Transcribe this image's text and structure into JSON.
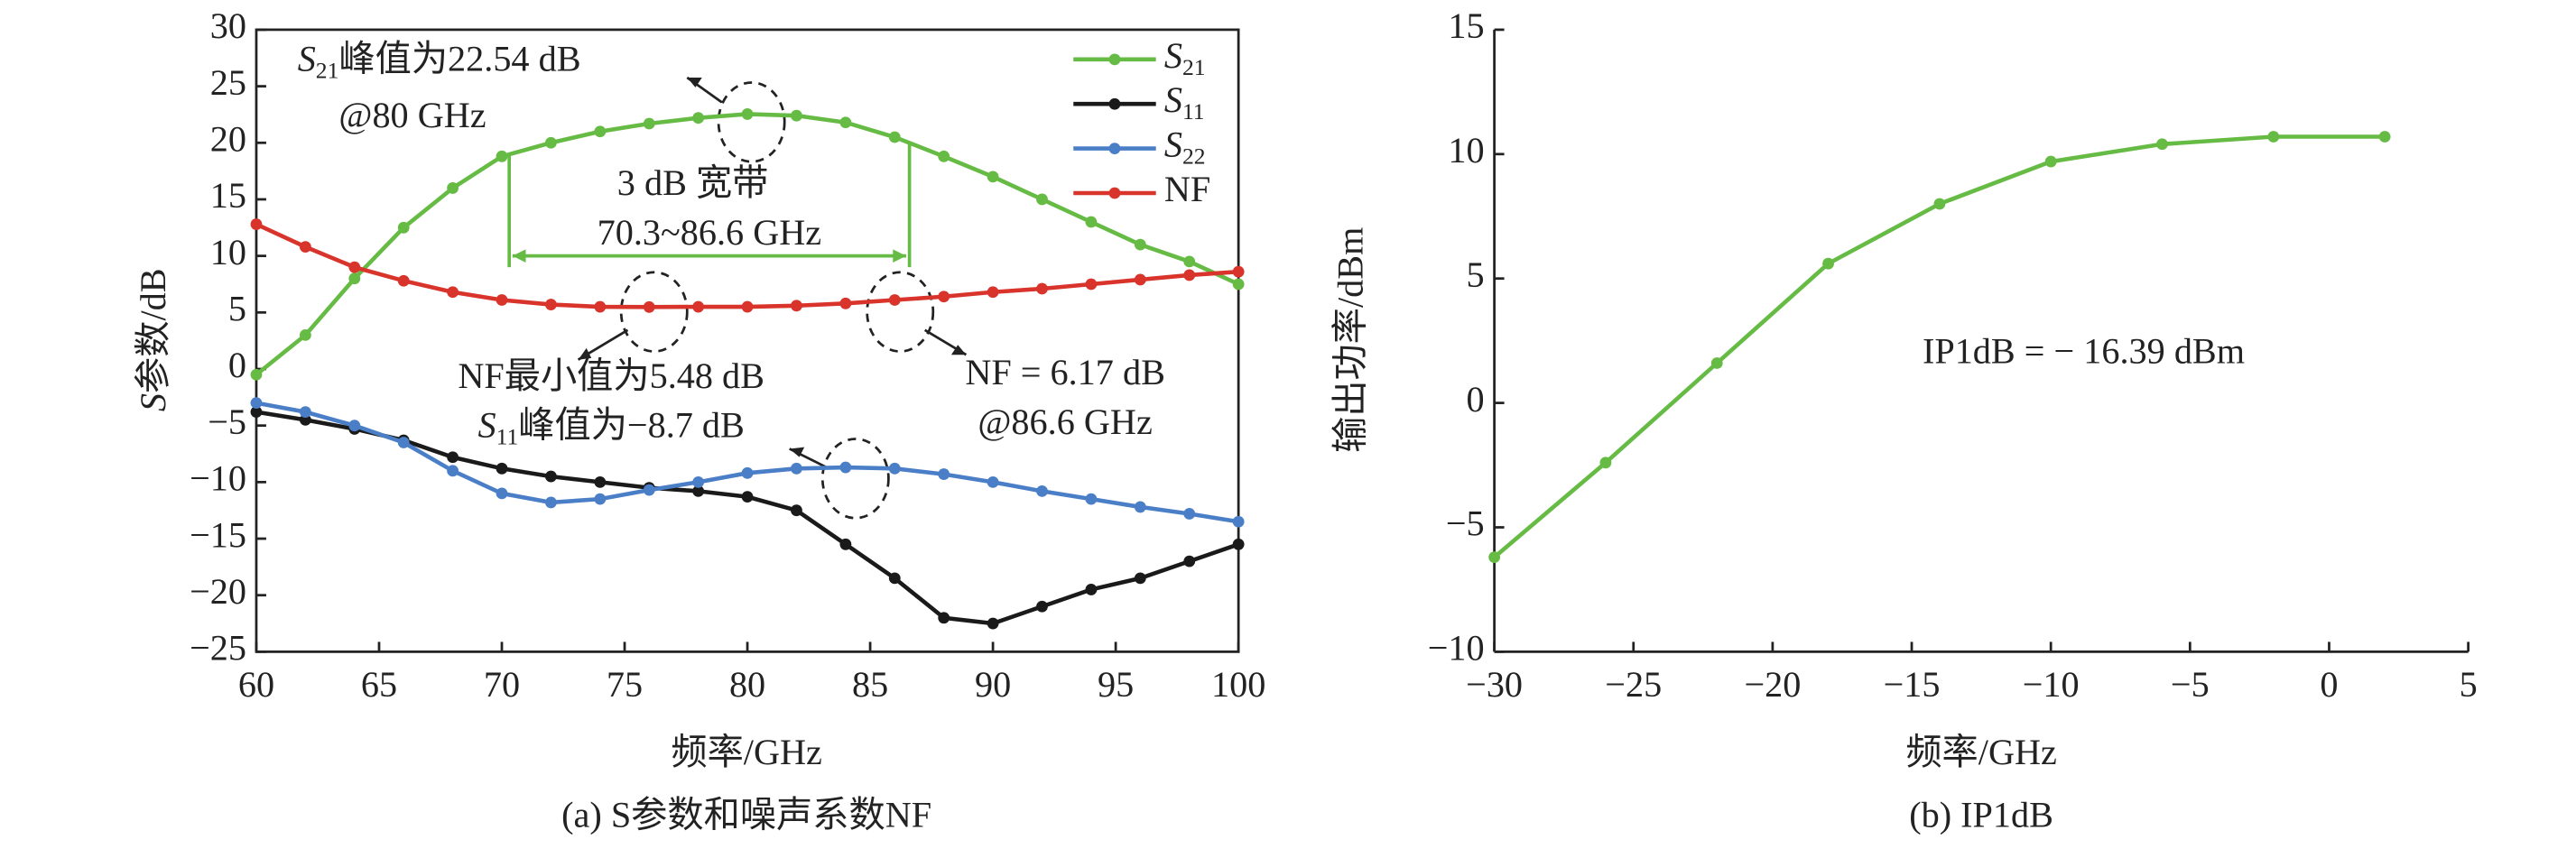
{
  "chart_data": [
    {
      "type": "line",
      "caption": "(a) S参数和噪声系数NF",
      "x_label": "频率/GHz",
      "y_label": "S参数/dB",
      "x": [
        60,
        62,
        64,
        66,
        68,
        70,
        72,
        74,
        76,
        78,
        80,
        82,
        84,
        86,
        88,
        90,
        92,
        94,
        96,
        98,
        100
      ],
      "series": [
        {
          "name": "S21",
          "color": "#66bb44",
          "values": [
            -0.5,
            3,
            8,
            12.5,
            16,
            18.8,
            20,
            21,
            21.7,
            22.2,
            22.54,
            22.4,
            21.8,
            20.5,
            18.8,
            17,
            15,
            13,
            11,
            9.5,
            7.5
          ]
        },
        {
          "name": "S11",
          "color": "#1a1a1a",
          "values": [
            -3.8,
            -4.5,
            -5.3,
            -6.3,
            -7.8,
            -8.8,
            -9.5,
            -10,
            -10.5,
            -10.8,
            -11.3,
            -12.5,
            -15.5,
            -18.5,
            -22,
            -22.5,
            -21,
            -19.5,
            -18.5,
            -17,
            -15.5
          ]
        },
        {
          "name": "S22",
          "color": "#4a7fc8",
          "values": [
            -3,
            -3.8,
            -5,
            -6.5,
            -9,
            -11,
            -11.8,
            -11.5,
            -10.7,
            -10,
            -9.2,
            -8.8,
            -8.7,
            -8.8,
            -9.3,
            -10,
            -10.8,
            -11.5,
            -12.2,
            -12.8,
            -13.5
          ]
        },
        {
          "name": "NF",
          "color": "#d9342b",
          "values": [
            12.8,
            10.8,
            9,
            7.8,
            6.8,
            6.1,
            5.7,
            5.5,
            5.48,
            5.5,
            5.5,
            5.6,
            5.8,
            6.1,
            6.4,
            6.8,
            7.1,
            7.5,
            7.9,
            8.3,
            8.6
          ]
        }
      ],
      "xlim": [
        60,
        100
      ],
      "xticks": [
        60,
        65,
        70,
        75,
        80,
        85,
        90,
        95,
        100
      ],
      "ylim": [
        -25,
        30
      ],
      "yticks": [
        {
          "value": -25,
          "label": "−25"
        },
        {
          "value": -20,
          "label": "−20"
        },
        {
          "value": -15,
          "label": "−15"
        },
        {
          "value": -10,
          "label": "−10"
        },
        {
          "value": -5,
          "label": "−5"
        },
        0,
        5,
        10,
        15,
        20,
        25,
        30
      ],
      "legend": "upper right",
      "bandwidth": {
        "start": 70.3,
        "end": 86.6,
        "label": "3 dB 宽带",
        "range_label": "70.3~86.6 GHz"
      },
      "annotations": [
        "S21峰值为22.54 dB",
        "@80 GHz",
        "NF最小值为5.48 dB",
        "S11峰值为−8.7 dB",
        "NF = 6.17 dB",
        "@86.6 GHz"
      ]
    },
    {
      "type": "line",
      "caption": "(b) IP1dB",
      "x_label": "频率/GHz",
      "y_label": "输出功率/dBm",
      "x": [
        -30,
        -26,
        -22,
        -18,
        -14,
        -10,
        -6,
        -2,
        2
      ],
      "series": [
        {
          "name": null,
          "color": "#66bb44",
          "values": [
            -6.2,
            -2.4,
            1.6,
            5.6,
            8,
            9.7,
            10.4,
            10.7,
            10.7
          ]
        }
      ],
      "xlim": [
        -30,
        5
      ],
      "xticks": [
        {
          "value": -30,
          "label": "−30"
        },
        {
          "value": -25,
          "label": "−25"
        },
        {
          "value": -20,
          "label": "−20"
        },
        {
          "value": -15,
          "label": "−15"
        },
        {
          "value": -10,
          "label": "−10"
        },
        {
          "value": -5,
          "label": "−5"
        },
        0,
        5
      ],
      "ylim": [
        -10,
        15
      ],
      "yticks": [
        {
          "value": -10,
          "label": "−10"
        },
        {
          "value": -5,
          "label": "−5"
        },
        0,
        5,
        10,
        15
      ],
      "annotations": [
        "IP1dB = − 16.39 dBm"
      ]
    }
  ]
}
